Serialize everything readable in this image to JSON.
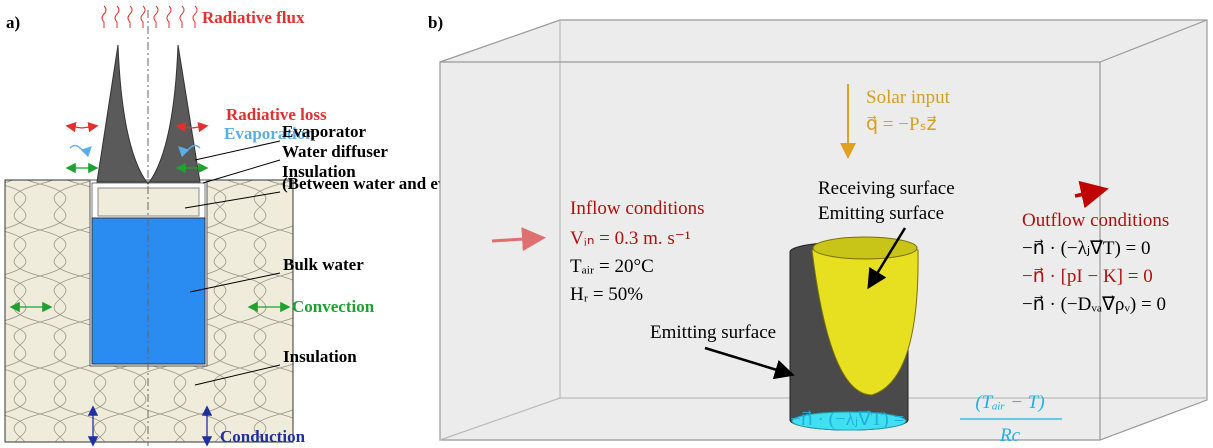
{
  "panel_a": {
    "label": "a)",
    "radiative_flux": "Radiative flux",
    "radiative_loss": "Radiative loss",
    "evaporation": "Evaporation",
    "evaporator": "Evaporator",
    "water_diffuser": "Water diffuser",
    "insulation_top": "Insulation",
    "insulation_note": "(Between water and evaporator)",
    "bulk_water": "Bulk water",
    "convection": "Convection",
    "insulation_bottom": "Insulation",
    "conduction": "Conduction"
  },
  "panel_b": {
    "label": "b)",
    "solar_input": [
      "Solar input",
      "q⃗ = −Pₛz⃗"
    ],
    "inflow": [
      "Inflow conditions",
      "Vᵢₙ = 0.3 m. s⁻¹",
      "Tₐᵢᵣ = 20°C",
      "Hᵣ = 50%"
    ],
    "outflow": [
      "Outflow conditions",
      "−n⃗ · (−λⱼ∇⃗T) = 0",
      "−n⃗ · [pI − K] = 0",
      "−n⃗ · (−Dᵥₐ∇⃗ρᵥ) = 0"
    ],
    "receiving_surface": "Receiving surface",
    "emitting_surface_top": "Emitting surface",
    "emitting_surface_bottom": "Emitting  surface",
    "boundary_lhs": "−n⃗ · (−λⱼ∇⃗T) =",
    "boundary_numerator": "(Tₐᵢᵣ − T)",
    "boundary_denominator": "Rc"
  }
}
